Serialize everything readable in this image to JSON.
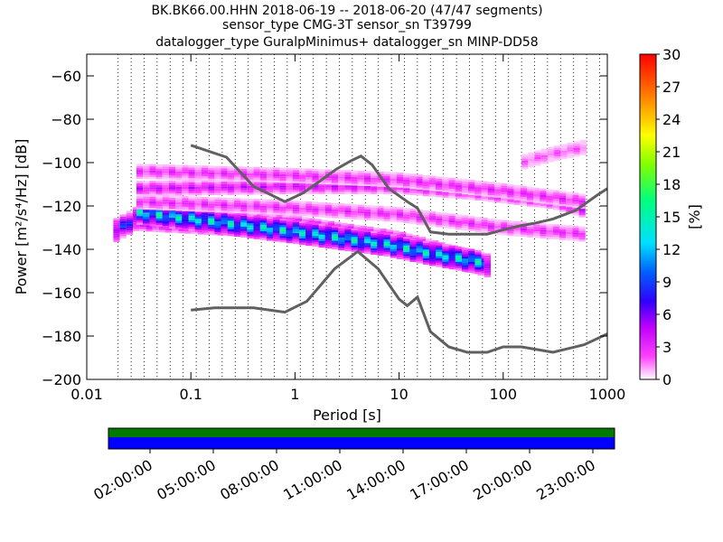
{
  "title_lines": [
    "BK.BK66.00.HHN   2018-06-19 -- 2018-06-20  (47/47 segments)",
    "sensor_type CMG-3T sensor_sn T39799",
    "datalogger_type GuralpMinimus+ datalogger_sn MINP-DD58"
  ],
  "chart_data": {
    "type": "heatmap",
    "xlabel": "Period [s]",
    "ylabel": "Power [m²/s⁴/Hz] [dB]",
    "x_scale": "log",
    "xlim": [
      0.01,
      1000
    ],
    "ylim": [
      -200,
      -50
    ],
    "x_ticks": [
      0.01,
      0.1,
      1,
      10,
      100,
      1000
    ],
    "x_tick_labels": [
      "0.01",
      "0.1",
      "1",
      "10",
      "100",
      "1000"
    ],
    "y_ticks": [
      -200,
      -180,
      -160,
      -140,
      -120,
      -100,
      -80,
      -60
    ],
    "y_tick_labels": [
      "−200",
      "−180",
      "−160",
      "−140",
      "−120",
      "−100",
      "−80",
      "−60"
    ],
    "grid": "dotted vertical lines at period bins",
    "colorbar": {
      "label": "[%]",
      "range": [
        0,
        30
      ],
      "ticks": [
        0,
        3,
        6,
        9,
        12,
        15,
        18,
        21,
        24,
        27,
        30
      ],
      "tick_labels": [
        "0",
        "3",
        "6",
        "9",
        "12",
        "15",
        "18",
        "21",
        "24",
        "27",
        "30"
      ]
    },
    "series": [
      {
        "type": "line",
        "color": "#606060",
        "x": [
          0.1,
          0.22,
          0.4,
          0.8,
          1.2,
          1.8,
          2.5,
          3.5,
          4.3,
          5.5,
          8,
          12,
          15,
          20,
          30,
          45,
          70,
          100,
          150,
          200,
          300,
          500,
          800,
          1000
        ],
        "y": [
          -92,
          -97.5,
          -111,
          -118,
          -114,
          -108,
          -103,
          -99,
          -97,
          -101,
          -112,
          -118,
          -121,
          -132,
          -133,
          -133,
          -133,
          -131,
          -129,
          -128,
          -126,
          -122,
          -115,
          -112
        ]
      },
      {
        "type": "line",
        "color": "#606060",
        "x": [
          0.1,
          0.17,
          0.4,
          0.8,
          1.3,
          2.4,
          4.0,
          6.3,
          10,
          12,
          15,
          20,
          30,
          45,
          70,
          100,
          150,
          300,
          600,
          1000
        ],
        "y": [
          -168,
          -167,
          -167,
          -169,
          -164,
          -149,
          -141,
          -149,
          -163,
          -166,
          -162,
          -178,
          -185,
          -187.5,
          -187.5,
          -185,
          -185,
          -187.5,
          -184,
          -179
        ]
      },
      {
        "type": "heatmap",
        "description_bands": [
          {
            "x": [
              0.018,
              0.03,
              1,
              10,
              30,
              80
            ],
            "y": [
              -132,
              -126,
              -130,
              -137,
              -143,
              -148
            ],
            "percent": 8
          },
          {
            "x": [
              0.03,
              0.1,
              1,
              8,
              20,
              60
            ],
            "y": [
              -123,
              -126,
              -132,
              -138,
              -142,
              -146
            ],
            "percent": 13
          },
          {
            "x": [
              0.03,
              1,
              10,
              60,
              300,
              600
            ],
            "y": [
              -112,
              -111,
              -111,
              -114,
              -118,
              -122
            ],
            "percent": 4
          },
          {
            "x": [
              0.03,
              1,
              10,
              100,
              600
            ],
            "y": [
              -104,
              -106,
              -108,
              -113,
              -118
            ],
            "percent": 3
          },
          {
            "x": [
              0.03,
              1,
              10,
              100,
              600
            ],
            "y": [
              -118,
              -121,
              -124,
              -130,
              -133
            ],
            "percent": 3
          },
          {
            "x": [
              150,
              300,
              600
            ],
            "y": [
              -100,
              -96,
              -93
            ],
            "percent": 2
          }
        ]
      }
    ]
  },
  "time_axis": {
    "labels": [
      "02:00:00",
      "05:00:00",
      "08:00:00",
      "11:00:00",
      "14:00:00",
      "17:00:00",
      "20:00:00",
      "23:00:00"
    ],
    "bar_colors": {
      "top": "#007a00",
      "bottom": "#0000ff"
    }
  }
}
